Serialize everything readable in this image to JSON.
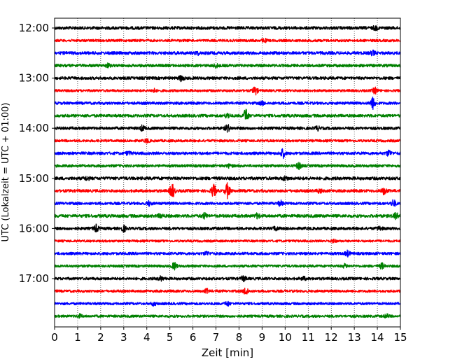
{
  "chart_data": {
    "type": "line",
    "title": "",
    "xlabel": "Zeit  [min]",
    "ylabel": "UTC (Lokalzeit = UTC + 01:00)",
    "xlim": [
      0,
      15
    ],
    "x_ticks": [
      "0",
      "1",
      "2",
      "3",
      "4",
      "5",
      "6",
      "7",
      "8",
      "9",
      "10",
      "11",
      "12",
      "13",
      "14",
      "15"
    ],
    "grid": "vertical-dotted",
    "trace_interval_minutes": 15,
    "first_trace": "12:00",
    "y_tick_labels": [
      {
        "label": "12:00",
        "trace_index": 0
      },
      {
        "label": "13:00",
        "trace_index": 4
      },
      {
        "label": "14:00",
        "trace_index": 8
      },
      {
        "label": "15:00",
        "trace_index": 12
      },
      {
        "label": "16:00",
        "trace_index": 16
      },
      {
        "label": "17:00",
        "trace_index": 20
      }
    ],
    "color_cycle": [
      "#000000",
      "#ff0000",
      "#0000ff",
      "#008000"
    ],
    "series": [
      {
        "time": "12:00",
        "noise": 0.9,
        "events": [
          [
            13.9,
            1.3
          ]
        ]
      },
      {
        "time": "12:15",
        "noise": 0.6,
        "events": [
          [
            9.1,
            1.2
          ]
        ]
      },
      {
        "time": "12:30",
        "noise": 0.9,
        "events": [
          [
            13.8,
            1.5
          ],
          [
            6.2,
            1.0
          ]
        ]
      },
      {
        "time": "12:45",
        "noise": 0.8,
        "events": [
          [
            2.3,
            1.2
          ],
          [
            7.0,
            1.1
          ]
        ]
      },
      {
        "time": "13:00",
        "noise": 0.8,
        "events": [
          [
            5.5,
            2.0
          ]
        ]
      },
      {
        "time": "13:15",
        "noise": 0.6,
        "events": [
          [
            8.7,
            3.0
          ],
          [
            13.9,
            2.2
          ],
          [
            4.3,
            1.2
          ]
        ]
      },
      {
        "time": "13:30",
        "noise": 0.7,
        "events": [
          [
            13.8,
            4.5
          ],
          [
            9.0,
            1.1
          ]
        ]
      },
      {
        "time": "13:45",
        "noise": 0.8,
        "events": [
          [
            8.3,
            5.0
          ],
          [
            7.5,
            1.8
          ]
        ]
      },
      {
        "time": "14:00",
        "noise": 0.8,
        "events": [
          [
            7.5,
            2.5
          ],
          [
            3.8,
            1.8
          ],
          [
            11.4,
            1.3
          ]
        ]
      },
      {
        "time": "14:15",
        "noise": 0.6,
        "events": [
          [
            4.0,
            1.2
          ]
        ]
      },
      {
        "time": "14:30",
        "noise": 0.8,
        "events": [
          [
            9.9,
            3.2
          ],
          [
            14.5,
            2.0
          ],
          [
            3.2,
            1.2
          ]
        ]
      },
      {
        "time": "14:45",
        "noise": 0.7,
        "events": [
          [
            10.6,
            2.5
          ],
          [
            7.6,
            1.2
          ]
        ]
      },
      {
        "time": "15:00",
        "noise": 0.9,
        "events": [
          [
            10.0,
            1.4
          ],
          [
            1.4,
            1.2
          ]
        ]
      },
      {
        "time": "15:15",
        "noise": 0.8,
        "events": [
          [
            5.1,
            5.5
          ],
          [
            7.5,
            5.5
          ],
          [
            6.9,
            4.5
          ],
          [
            14.3,
            2.5
          ],
          [
            11.5,
            1.5
          ]
        ]
      },
      {
        "time": "15:30",
        "noise": 0.7,
        "events": [
          [
            14.7,
            2.5
          ],
          [
            9.8,
            1.8
          ],
          [
            4.1,
            1.6
          ]
        ]
      },
      {
        "time": "15:45",
        "noise": 0.9,
        "events": [
          [
            14.8,
            2.8
          ],
          [
            6.5,
            1.8
          ],
          [
            8.8,
            1.6
          ],
          [
            4.6,
            1.5
          ]
        ]
      },
      {
        "time": "16:00",
        "noise": 0.8,
        "events": [
          [
            1.8,
            2.5
          ],
          [
            3.0,
            2.0
          ],
          [
            9.6,
            1.5
          ],
          [
            14.1,
            1.4
          ]
        ]
      },
      {
        "time": "16:15",
        "noise": 0.5,
        "events": [
          [
            12.1,
            1.1
          ]
        ]
      },
      {
        "time": "16:30",
        "noise": 0.7,
        "events": [
          [
            12.7,
            2.0
          ],
          [
            6.6,
            1.3
          ]
        ]
      },
      {
        "time": "16:45",
        "noise": 0.6,
        "events": [
          [
            5.2,
            2.6
          ],
          [
            14.2,
            1.9
          ],
          [
            12.6,
            1.3
          ]
        ]
      },
      {
        "time": "17:00",
        "noise": 0.7,
        "events": [
          [
            8.2,
            1.8
          ],
          [
            4.6,
            1.5
          ],
          [
            10.8,
            1.2
          ]
        ]
      },
      {
        "time": "17:15",
        "noise": 0.6,
        "events": [
          [
            8.3,
            3.0
          ],
          [
            6.6,
            1.5
          ]
        ]
      },
      {
        "time": "17:30",
        "noise": 0.6,
        "events": [
          [
            7.5,
            1.5
          ],
          [
            4.3,
            1.2
          ]
        ]
      },
      {
        "time": "17:45",
        "noise": 0.6,
        "events": [
          [
            1.1,
            1.2
          ],
          [
            14.4,
            1.2
          ]
        ]
      }
    ]
  }
}
